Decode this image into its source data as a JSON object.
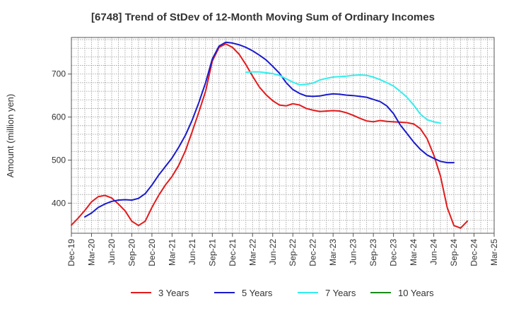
{
  "chart_data": {
    "type": "line",
    "title": "[6748]  Trend of StDev of 12-Month Moving Sum of Ordinary Incomes",
    "xlabel": "",
    "ylabel": "Amount (million yen)",
    "x_ticks": [
      "Dec-19",
      "Mar-20",
      "Jun-20",
      "Sep-20",
      "Dec-20",
      "Mar-21",
      "Jun-21",
      "Sep-21",
      "Dec-21",
      "Mar-22",
      "Jun-22",
      "Sep-22",
      "Dec-22",
      "Mar-23",
      "Jun-23",
      "Sep-23",
      "Dec-23",
      "Mar-24",
      "Jun-24",
      "Sep-24",
      "Dec-24",
      "Mar-25"
    ],
    "y_ticks": [
      400,
      500,
      600,
      700
    ],
    "ylim": [
      330,
      785
    ],
    "xlim": [
      0,
      63
    ],
    "grid": true,
    "legend_position": "bottom",
    "series": [
      {
        "name": "3 Years",
        "color": "#e31a1c",
        "x_start": 0,
        "values": [
          349,
          365,
          383,
          403,
          415,
          418,
          412,
          398,
          382,
          358,
          348,
          358,
          390,
          418,
          442,
          462,
          488,
          522,
          566,
          612,
          660,
          730,
          762,
          770,
          762,
          746,
          722,
          695,
          670,
          652,
          638,
          628,
          626,
          631,
          628,
          620,
          616,
          613,
          614,
          615,
          614,
          610,
          604,
          597,
          591,
          589,
          592,
          590,
          589,
          588,
          587,
          584,
          573,
          550,
          512,
          463,
          390,
          348,
          342,
          358
        ]
      },
      {
        "name": "5 Years",
        "color": "#1a1acd",
        "x_start": 2,
        "values": [
          368,
          377,
          390,
          398,
          404,
          407,
          408,
          407,
          411,
          422,
          442,
          465,
          485,
          505,
          530,
          558,
          593,
          634,
          680,
          735,
          765,
          774,
          772,
          768,
          762,
          754,
          744,
          733,
          718,
          702,
          680,
          664,
          655,
          649,
          648,
          649,
          652,
          654,
          653,
          651,
          650,
          648,
          646,
          641,
          636,
          626,
          608,
          582,
          562,
          542,
          525,
          512,
          504,
          497,
          494,
          494
        ]
      },
      {
        "name": "7 Years",
        "color": "#33eeee",
        "x_start": 26,
        "values": [
          704,
          705,
          705,
          703,
          701,
          697,
          689,
          681,
          675,
          676,
          679,
          686,
          690,
          693,
          694,
          695,
          697,
          698,
          697,
          693,
          687,
          680,
          672,
          660,
          646,
          628,
          607,
          594,
          589,
          586
        ]
      },
      {
        "name": "10 Years",
        "color": "#1a8a1a",
        "x_start": 0,
        "values": []
      }
    ]
  }
}
